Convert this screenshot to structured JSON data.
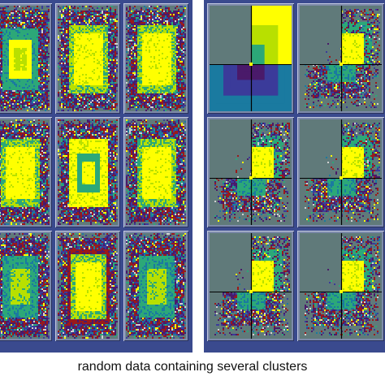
{
  "caption": "random data containing several clusters",
  "colors": {
    "frame": "#3a4a8e",
    "cell_border": "#7d8aaa",
    "background_gray": "#607a7a",
    "palette": [
      "#ffff00",
      "#b8e000",
      "#2ca878",
      "#1a7aa0",
      "#3b3b9a",
      "#4a1a6a",
      "#9a1a1a",
      "#d0d0d0"
    ]
  },
  "left_grid": {
    "rows": 3,
    "cols": 3,
    "description_free": true,
    "cells": [
      {
        "pattern": "yellow-center-green-ring"
      },
      {
        "pattern": "yellow-square"
      },
      {
        "pattern": "yellow-square"
      },
      {
        "pattern": "yellow-square"
      },
      {
        "pattern": "green-ring-yellow-outer"
      },
      {
        "pattern": "yellow-square"
      },
      {
        "pattern": "green-square"
      },
      {
        "pattern": "yellow-square-dark-ring"
      },
      {
        "pattern": "green-square"
      }
    ]
  },
  "right_grid": {
    "rows": 3,
    "cols": 2,
    "cells": [
      {
        "pattern": "quadrants-smooth"
      },
      {
        "pattern": "quadrants-noisy"
      },
      {
        "pattern": "quadrants-noisy"
      },
      {
        "pattern": "quadrants-noisy"
      },
      {
        "pattern": "quadrants-noisy"
      },
      {
        "pattern": "quadrants-noisy"
      }
    ]
  }
}
